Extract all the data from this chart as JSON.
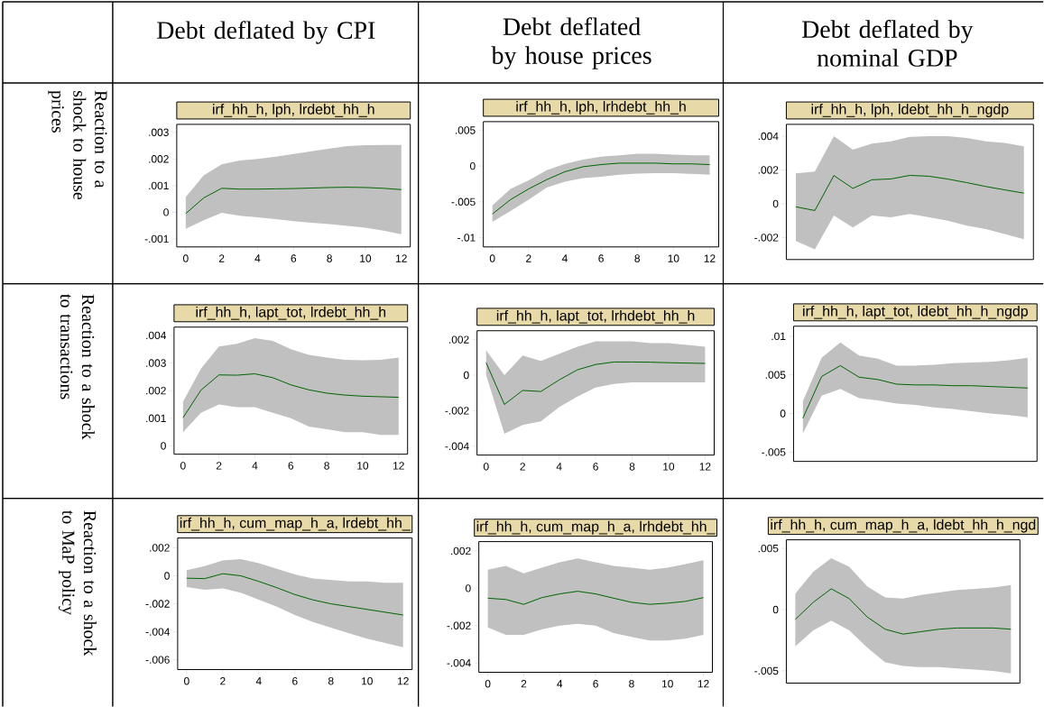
{
  "chart_data": [
    {
      "type": "line",
      "title": "irf_hh_h, lph, lrdebt_hh_h",
      "annotations": [
        "Debt deflated by CPI",
        "Reaction to a shock to house prices"
      ],
      "x": [
        0,
        1,
        2,
        3,
        4,
        5,
        6,
        7,
        8,
        9,
        10,
        11,
        12
      ],
      "xlim": [
        -0.5,
        12.5
      ],
      "xticks": [
        0,
        2,
        4,
        6,
        8,
        10,
        12
      ],
      "ylim": [
        -0.0013,
        0.0033
      ],
      "yticks": [
        {
          "value": -0.001,
          "label": "-.001"
        },
        0,
        {
          "value": 0.001,
          "label": ".001"
        },
        {
          "value": 0.002,
          "label": ".002"
        },
        {
          "value": 0.003,
          "label": ".003"
        }
      ],
      "series": [
        {
          "color": "#006400",
          "values": [
            -5e-05,
            0.00054,
            0.0009,
            0.00087,
            0.00087,
            0.00088,
            0.00089,
            0.00091,
            0.00093,
            0.00094,
            0.00093,
            0.0009,
            0.00085
          ],
          "upper": [
            0.00057,
            0.00138,
            0.0018,
            0.00194,
            0.002,
            0.00209,
            0.00219,
            0.00229,
            0.00239,
            0.00248,
            0.00252,
            0.00253,
            0.00253
          ],
          "lower": [
            -0.00062,
            -0.0003,
            -2e-05,
            -0.00013,
            -0.00019,
            -0.00026,
            -0.00033,
            -0.00039,
            -0.00044,
            -0.00051,
            -0.00058,
            -0.00069,
            -0.00082
          ]
        }
      ]
    },
    {
      "type": "line",
      "title": "irf_hh_h, lph, lrhdebt_hh_h",
      "annotations": [
        "Debt deflated by house prices"
      ],
      "x": [
        0,
        1,
        2,
        3,
        4,
        5,
        6,
        7,
        8,
        9,
        10,
        11,
        12
      ],
      "xlim": [
        -0.5,
        12.5
      ],
      "xticks": [
        0,
        2,
        4,
        6,
        8,
        10,
        12
      ],
      "ylim": [
        -0.0113,
        0.0062
      ],
      "yticks": [
        {
          "value": -0.01,
          "label": "-.01"
        },
        {
          "value": -0.005,
          "label": "-.005"
        },
        0,
        {
          "value": 0.005,
          "label": ".005"
        }
      ],
      "series": [
        {
          "color": "#006400",
          "values": [
            -0.0067,
            -0.0047,
            -0.0032,
            -0.0019,
            -0.0008,
            -0.0001,
            0.0002,
            0.0004,
            0.0004,
            0.0004,
            0.0003,
            0.0003,
            0.0002
          ],
          "upper": [
            -0.0055,
            -0.0032,
            -0.002,
            -0.0006,
            0.0003,
            0.0009,
            0.0013,
            0.0015,
            0.0017,
            0.0017,
            0.0016,
            0.0015,
            0.0015
          ],
          "lower": [
            -0.0078,
            -0.0063,
            -0.0047,
            -0.003,
            -0.0022,
            -0.0017,
            -0.0015,
            -0.0012,
            -0.00105,
            -0.001,
            -0.001,
            -0.0011,
            -0.0012
          ]
        }
      ]
    },
    {
      "type": "line",
      "title": "irf_hh_h, lph, ldebt_hh_h_ngdp",
      "annotations": [
        "Debt deflated by nominal GDP"
      ],
      "tick_labels": "y",
      "categories": [
        null,
        null,
        null,
        null,
        null,
        null,
        null,
        null,
        null,
        null,
        null,
        null,
        null
      ],
      "ylim": [
        -0.0033,
        0.0047
      ],
      "yticks": [
        {
          "value": -0.002,
          "label": "-.002"
        },
        0,
        {
          "value": 0.002,
          "label": ".002"
        },
        {
          "value": 0.004,
          "label": ".004"
        }
      ],
      "series": [
        {
          "color": "#006400",
          "values": [
            -0.00018,
            -0.0004,
            0.00167,
            0.00091,
            0.00142,
            0.00147,
            0.00168,
            0.00163,
            0.00146,
            0.00125,
            0.00102,
            0.00082,
            0.00063
          ],
          "upper": [
            0.0018,
            0.0019,
            0.004,
            0.0032,
            0.00356,
            0.0037,
            0.00396,
            0.004,
            0.004,
            0.0039,
            0.0037,
            0.0036,
            0.0034
          ],
          "lower": [
            -0.0022,
            -0.0027,
            -0.0007,
            -0.0014,
            -0.0007,
            -0.0008,
            -0.0006,
            -0.0008,
            -0.001,
            -0.0013,
            -0.0015,
            -0.0018,
            -0.0021
          ]
        }
      ]
    },
    {
      "type": "line",
      "title": "irf_hh_h, lapt_tot, lrdebt_hh_h",
      "annotations": [
        "Reaction to a shock to transactions"
      ],
      "x": [
        0,
        1,
        2,
        3,
        4,
        5,
        6,
        7,
        8,
        9,
        10,
        11,
        12
      ],
      "xlim": [
        -0.5,
        12.5
      ],
      "xticks": [
        0,
        2,
        4,
        6,
        8,
        10,
        12
      ],
      "ylim": [
        -0.0003,
        0.0043
      ],
      "yticks": [
        0,
        {
          "value": 0.001,
          "label": ".001"
        },
        {
          "value": 0.002,
          "label": ".002"
        },
        {
          "value": 0.003,
          "label": ".003"
        },
        {
          "value": 0.004,
          "label": ".004"
        }
      ],
      "series": [
        {
          "color": "#006400",
          "values": [
            0.00102,
            0.00202,
            0.00257,
            0.00256,
            0.00261,
            0.00247,
            0.00221,
            0.00203,
            0.00191,
            0.00184,
            0.0018,
            0.00178,
            0.00176
          ],
          "upper": [
            0.0016,
            0.0028,
            0.0036,
            0.0037,
            0.0039,
            0.0038,
            0.0035,
            0.0033,
            0.0032,
            0.00312,
            0.0031,
            0.00312,
            0.0032
          ],
          "lower": [
            0.0005,
            0.0012,
            0.0015,
            0.0014,
            0.0014,
            0.0012,
            0.001,
            0.0007,
            0.0006,
            0.0005,
            0.0005,
            0.0004,
            0.0004
          ]
        }
      ]
    },
    {
      "type": "line",
      "title": "irf_hh_h, lapt_tot, lrhdebt_hh_h",
      "x": [
        0,
        1,
        2,
        3,
        4,
        5,
        6,
        7,
        8,
        9,
        10,
        11,
        12
      ],
      "xlim": [
        -0.5,
        12.5
      ],
      "xticks": [
        0,
        2,
        4,
        6,
        8,
        10,
        12
      ],
      "ylim": [
        -0.0045,
        0.0025
      ],
      "yticks": [
        {
          "value": -0.004,
          "label": "-.004"
        },
        {
          "value": -0.002,
          "label": "-.002"
        },
        0,
        {
          "value": 0.002,
          "label": ".002"
        }
      ],
      "series": [
        {
          "color": "#006400",
          "values": [
            0.0007,
            -0.00165,
            -0.00086,
            -0.00092,
            -0.00027,
            0.0003,
            0.0006,
            0.00074,
            0.00074,
            0.00073,
            0.0007,
            0.00068,
            0.00066
          ],
          "upper": [
            0.0014,
            0.0,
            0.0011,
            0.0008,
            0.0012,
            0.0016,
            0.0019,
            0.0019,
            0.0019,
            0.0018,
            0.0018,
            0.0017,
            0.0016
          ],
          "lower": [
            0.0,
            -0.0033,
            -0.0028,
            -0.0026,
            -0.0018,
            -0.0012,
            -0.0007,
            -0.0005,
            -0.0004,
            -0.0004,
            -0.0004,
            -0.0004,
            -0.0004
          ]
        }
      ]
    },
    {
      "type": "line",
      "title": "irf_hh_h, lapt_tot, ldebt_hh_h_ngdp",
      "tick_labels": "y",
      "categories": [
        null,
        null,
        null,
        null,
        null,
        null,
        null,
        null,
        null,
        null,
        null,
        null,
        null
      ],
      "ylim": [
        -0.0062,
        0.0113
      ],
      "yticks": [
        {
          "value": -0.005,
          "label": "-.005"
        },
        0,
        {
          "value": 0.005,
          "label": ".005"
        },
        {
          "value": 0.01,
          "label": ".01"
        }
      ],
      "series": [
        {
          "color": "#006400",
          "values": [
            -0.0006,
            0.0048,
            0.0062,
            0.0047,
            0.0044,
            0.0038,
            0.0037,
            0.0037,
            0.0036,
            0.0036,
            0.0035,
            0.0034,
            0.0033
          ],
          "upper": [
            0.0016,
            0.0072,
            0.0092,
            0.0075,
            0.0071,
            0.0062,
            0.0062,
            0.0063,
            0.0065,
            0.0066,
            0.0067,
            0.0069,
            0.0072
          ],
          "lower": [
            -0.0026,
            0.0023,
            0.0032,
            0.002,
            0.0017,
            0.0013,
            0.0011,
            0.0008,
            0.0006,
            0.0003,
            0.0,
            -0.0002,
            -0.0005
          ]
        }
      ]
    },
    {
      "type": "line",
      "title": "irf_hh_h, cum_map_h_a, lrdebt_hh_",
      "annotations": [
        "Reaction to a shock to MaP policy"
      ],
      "x": [
        0,
        1,
        2,
        3,
        4,
        5,
        6,
        7,
        8,
        9,
        10,
        11,
        12
      ],
      "xlim": [
        -0.5,
        12.5
      ],
      "xticks": [
        0,
        2,
        4,
        6,
        8,
        10,
        12
      ],
      "ylim": [
        -0.0067,
        0.0027
      ],
      "yticks": [
        {
          "value": -0.006,
          "label": "-.006"
        },
        {
          "value": -0.004,
          "label": "-.004"
        },
        {
          "value": -0.002,
          "label": "-.002"
        },
        0,
        {
          "value": 0.002,
          "label": ".002"
        }
      ],
      "series": [
        {
          "color": "#006400",
          "values": [
            -0.00017,
            -0.0002,
            0.00015,
            0.0,
            -0.0004,
            -0.00085,
            -0.00134,
            -0.00172,
            -0.002,
            -0.0022,
            -0.0024,
            -0.0026,
            -0.0028
          ],
          "upper": [
            0.0004,
            0.0007,
            0.0011,
            0.0012,
            0.0009,
            0.0005,
            0.0001,
            -0.0002,
            -0.0003,
            -0.0004,
            -0.0004,
            -0.0005,
            -0.0005
          ],
          "lower": [
            -0.0008,
            -0.001,
            -0.0009,
            -0.0012,
            -0.0017,
            -0.0022,
            -0.0028,
            -0.0033,
            -0.0037,
            -0.0041,
            -0.0045,
            -0.0048,
            -0.0051
          ]
        }
      ]
    },
    {
      "type": "line",
      "title": "irf_hh_h, cum_map_h_a, lrhdebt_hh_",
      "x": [
        0,
        1,
        2,
        3,
        4,
        5,
        6,
        7,
        8,
        9,
        10,
        11,
        12
      ],
      "xlim": [
        -0.5,
        12.5
      ],
      "xticks": [
        0,
        2,
        4,
        6,
        8,
        10,
        12
      ],
      "ylim": [
        -0.0045,
        0.0025
      ],
      "yticks": [
        {
          "value": -0.004,
          "label": "-.004"
        },
        {
          "value": -0.002,
          "label": "-.002"
        },
        0,
        {
          "value": 0.002,
          "label": ".002"
        }
      ],
      "series": [
        {
          "color": "#006400",
          "values": [
            -0.00053,
            -0.0006,
            -0.00086,
            -0.0005,
            -0.0003,
            -0.00016,
            -0.0003,
            -0.00053,
            -0.00075,
            -0.00086,
            -0.0008,
            -0.0007,
            -0.0005
          ],
          "upper": [
            0.001,
            0.0012,
            0.0008,
            0.0011,
            0.0014,
            0.0016,
            0.0014,
            0.0012,
            0.0011,
            0.001,
            0.0011,
            0.0013,
            0.0015
          ],
          "lower": [
            -0.0021,
            -0.0025,
            -0.0025,
            -0.0022,
            -0.002,
            -0.0019,
            -0.002,
            -0.0024,
            -0.0026,
            -0.0028,
            -0.0028,
            -0.0027,
            -0.0025
          ]
        }
      ]
    },
    {
      "type": "line",
      "title": "irf_hh_h, cum_map_h_a, ldebt_hh_h_ngd",
      "tick_labels": "y",
      "categories": [
        null,
        null,
        null,
        null,
        null,
        null,
        null,
        null,
        null,
        null,
        null,
        null,
        null
      ],
      "ylim": [
        -0.006,
        0.0057
      ],
      "yticks": [
        {
          "value": -0.005,
          "label": "-.005"
        },
        0,
        {
          "value": 0.005,
          "label": ".005"
        }
      ],
      "series": [
        {
          "color": "#006400",
          "values": [
            -0.0008,
            0.0006,
            0.0017,
            0.0009,
            -0.0006,
            -0.0016,
            -0.002,
            -0.0018,
            -0.0016,
            -0.0015,
            -0.0015,
            -0.0015,
            -0.0016
          ],
          "upper": [
            0.0013,
            0.0031,
            0.0042,
            0.0035,
            0.0019,
            0.001,
            0.0009,
            0.0012,
            0.0014,
            0.0016,
            0.0017,
            0.0018,
            0.002
          ],
          "lower": [
            -0.003,
            -0.0017,
            -0.0009,
            -0.0017,
            -0.0031,
            -0.0043,
            -0.0046,
            -0.0047,
            -0.0047,
            -0.0048,
            -0.0049,
            -0.005,
            -0.0052
          ]
        }
      ]
    }
  ]
}
